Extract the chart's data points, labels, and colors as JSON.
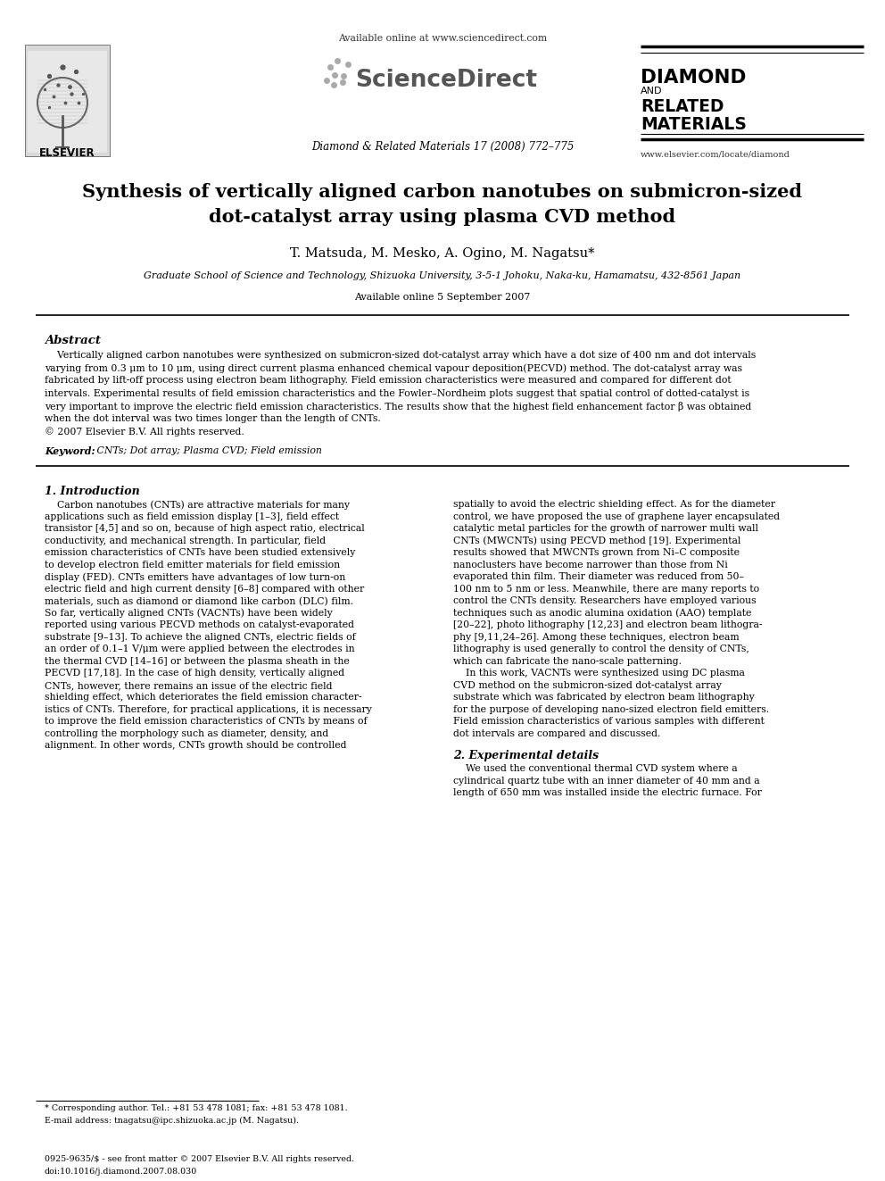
{
  "title_line1": "Synthesis of vertically aligned carbon nanotubes on submicron-sized",
  "title_line2": "dot-catalyst array using plasma CVD method",
  "authors": "T. Matsuda, M. Mesko, A. Ogino, M. Nagatsu*",
  "affiliation": "Graduate School of Science and Technology, Shizuoka University, 3-5-1 Johoku, Naka-ku, Hamamatsu, 432-8561 Japan",
  "online_date": "Available online 5 September 2007",
  "header_url": "Available online at www.sciencedirect.com",
  "sciencedirect": "ScienceDirect",
  "journal_line": "Diamond & Related Materials 17 (2008) 772–775",
  "drm1": "DIAMOND",
  "drm2": "AND",
  "drm3": "RELATED",
  "drm4": "MATERIALS",
  "journal_url": "www.elsevier.com/locate/diamond",
  "elsevier_text": "ELSEVIER",
  "abstract_title": "Abstract",
  "keywords_bold": "Keyword:",
  "keywords_rest": " CNTs; Dot array; Plasma CVD; Field emission",
  "section1_title": "1. Introduction",
  "section2_title": "2. Experimental details",
  "footnote1": "* Corresponding author. Tel.: +81 53 478 1081; fax: +81 53 478 1081.",
  "footnote2": "E-mail address: tnagatsu@ipc.shizuoka.ac.jp (M. Nagatsu).",
  "footer1": "0925-9635/$ - see front matter © 2007 Elsevier B.V. All rights reserved.",
  "footer2": "doi:10.1016/j.diamond.2007.08.030",
  "bg_color": "#ffffff",
  "text_color": "#000000"
}
